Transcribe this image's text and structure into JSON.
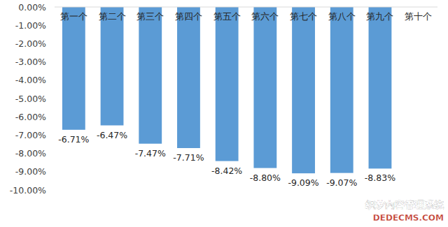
{
  "chart_data": {
    "type": "bar",
    "categories": [
      "第一个",
      "第二个",
      "第三个",
      "第四个",
      "第五个",
      "第六个",
      "第七个",
      "第八个",
      "第九个",
      "第十个"
    ],
    "values": [
      -6.71,
      -6.47,
      -7.47,
      -7.71,
      -8.42,
      -8.8,
      -9.09,
      -9.07,
      -8.83,
      null
    ],
    "value_labels": [
      "-6.71%",
      "-6.47%",
      "-7.47%",
      "-7.71%",
      "-8.42%",
      "-8.80%",
      "-9.09%",
      "-9.07%",
      "-8.83%",
      null
    ],
    "color": "#5b9bd5",
    "ylim": [
      -10,
      0
    ],
    "yticks": [
      {
        "value": 0,
        "label": "0.00%"
      },
      {
        "value": -1,
        "label": "-1.00%"
      },
      {
        "value": -2,
        "label": "-2.00%"
      },
      {
        "value": -3,
        "label": "-3.00%"
      },
      {
        "value": -4,
        "label": "-4.00%"
      },
      {
        "value": -5,
        "label": "-5.00%"
      },
      {
        "value": -6,
        "label": "-6.00%"
      },
      {
        "value": -7,
        "label": "-7.00%"
      },
      {
        "value": -8,
        "label": "-8.00%"
      },
      {
        "value": -9,
        "label": "-9.00%"
      },
      {
        "value": -10,
        "label": "-10.00%"
      }
    ],
    "grid": false,
    "data_labels": true,
    "annotations": [
      "织梦内容管理系统",
      "DEDECMS.COM"
    ]
  }
}
